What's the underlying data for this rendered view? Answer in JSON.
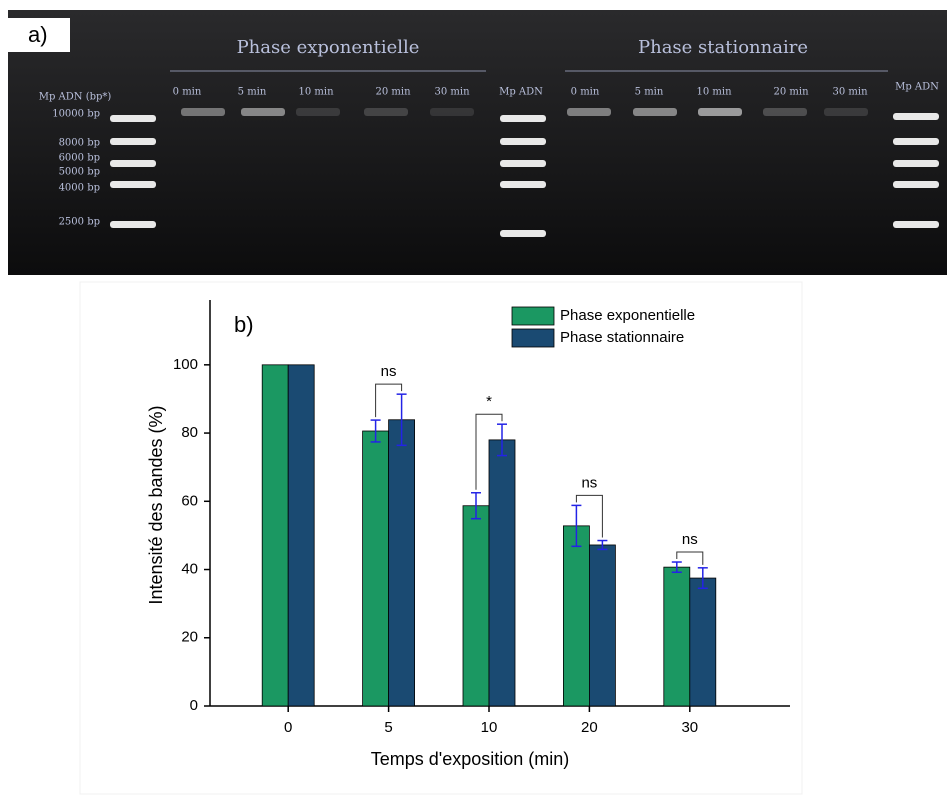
{
  "gel": {
    "panel_label": "a)",
    "groups": [
      "Phase exponentielle",
      "Phase stationnaire"
    ],
    "ladder_header": "Mp ADN (bp*)",
    "ladder_label": "Mp ADN",
    "ladder_sizes": [
      "10000 bp",
      "8000 bp",
      "6000 bp",
      "5000 bp",
      "4000 bp",
      "2500 bp"
    ],
    "lanes": [
      "0 min",
      "5 min",
      "10 min",
      "20 min",
      "30 min"
    ]
  },
  "chart_data": {
    "type": "bar",
    "panel_label": "b)",
    "x_label": "Temps d'exposition (min)",
    "y_label": "Intensité des bandes (%)",
    "categories": [
      "0",
      "5",
      "10",
      "20",
      "30"
    ],
    "series": [
      {
        "name": "Phase exponentielle",
        "color": "#1b9862",
        "values": [
          100,
          80.6,
          58.7,
          52.8,
          40.7
        ],
        "errors": [
          null,
          3.2,
          3.8,
          6,
          1.5
        ]
      },
      {
        "name": "Phase stationnaire",
        "color": "#1a4a72",
        "values": [
          100,
          83.9,
          78,
          47.2,
          37.5
        ],
        "errors": [
          null,
          7.5,
          4.6,
          1.3,
          3
        ]
      }
    ],
    "error_color": "#2323e6",
    "annotations": [
      null,
      "ns",
      "*",
      "ns",
      "ns"
    ],
    "ylim": [
      0,
      119
    ],
    "yticks": [
      0,
      20,
      40,
      60,
      80,
      100
    ],
    "legend": "top-right"
  }
}
